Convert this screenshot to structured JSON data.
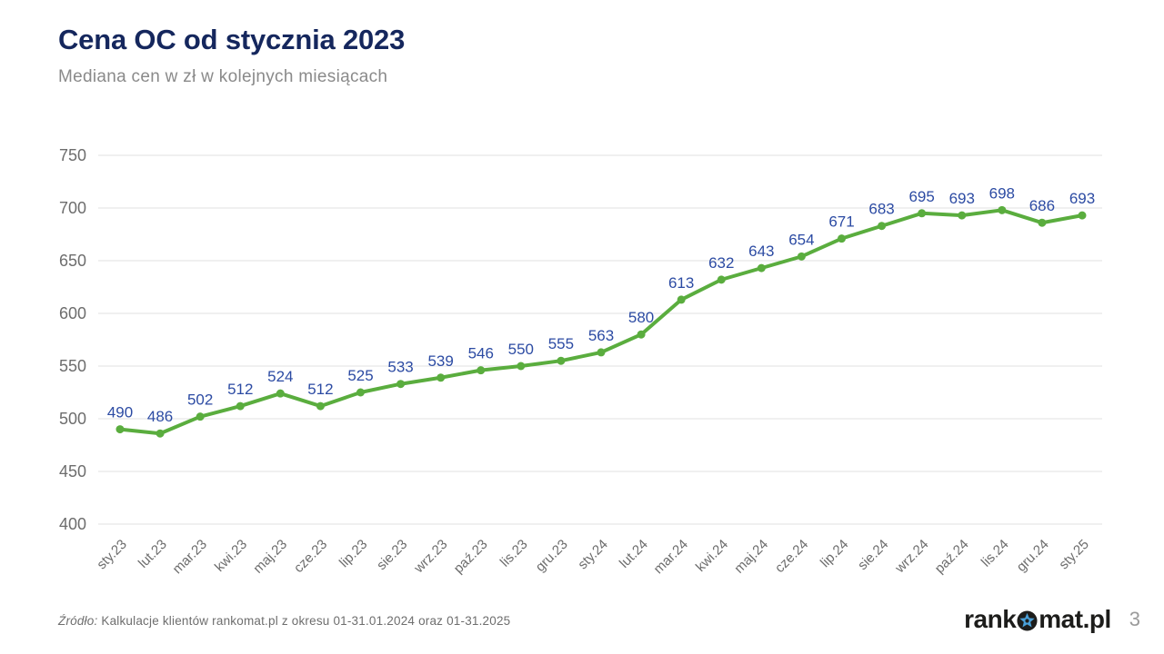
{
  "header": {
    "title": "Cena OC od stycznia 2023",
    "subtitle": "Mediana cen w zł w kolejnych miesiącach"
  },
  "chart_data": {
    "type": "line",
    "categories": [
      "sty.23",
      "lut.23",
      "mar.23",
      "kwi.23",
      "maj.23",
      "cze.23",
      "lip.23",
      "sie.23",
      "wrz.23",
      "paź.23",
      "lis.23",
      "gru.23",
      "sty.24",
      "lut.24",
      "mar.24",
      "kwi.24",
      "maj.24",
      "cze.24",
      "lip.24",
      "sie.24",
      "wrz.24",
      "paź.24",
      "lis.24",
      "gru.24",
      "sty.25"
    ],
    "values": [
      490,
      486,
      502,
      512,
      524,
      512,
      525,
      533,
      539,
      546,
      550,
      555,
      563,
      580,
      613,
      632,
      643,
      654,
      671,
      683,
      695,
      693,
      698,
      686,
      693
    ],
    "y_ticks": [
      400,
      450,
      500,
      550,
      600,
      650,
      700,
      750
    ],
    "ylim": [
      400,
      750
    ],
    "grid": true,
    "legend": "none",
    "title": "Cena OC od stycznia 2023",
    "xlabel": "",
    "ylabel": ""
  },
  "colors": {
    "line": "#5aad3e",
    "data_label": "#2c4ba3",
    "title": "#15275d",
    "axis_label": "#6d6d6d",
    "gridline": "#e2e2e2",
    "logo_accent": "#4aa0d8"
  },
  "footer": {
    "source_prefix": "Źródło:",
    "source_text": "Kalkulacje klientów rankomat.pl z okresu 01-31.01.2024 oraz 01-31.2025",
    "logo_part1": "rank",
    "logo_part2": "mat.pl",
    "page_number": "3"
  }
}
